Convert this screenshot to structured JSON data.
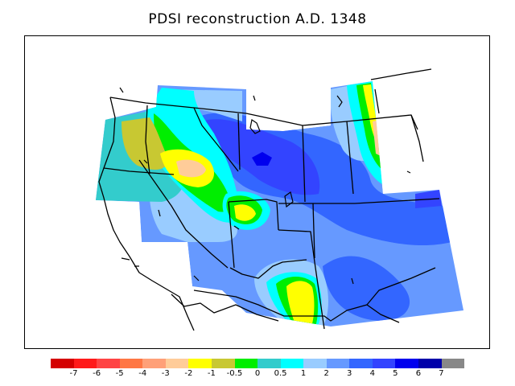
{
  "title": "PDSI reconstruction A.D. 1348",
  "legend": {
    "colors": [
      "#d40000",
      "#ff1a1a",
      "#ff4444",
      "#ff7744",
      "#ffa078",
      "#ffcc99",
      "#ffff00",
      "#c8c832",
      "#00ee00",
      "#33cccc",
      "#00ffff",
      "#99ccff",
      "#6699ff",
      "#3366ff",
      "#3344ff",
      "#0000ee",
      "#0000aa",
      "#888888"
    ],
    "tick_labels": [
      "-7",
      "-6",
      "-5",
      "-4",
      "-3",
      "-2",
      "-1",
      "-0.5",
      "0",
      "0.5",
      "1",
      "2",
      "3",
      "4",
      "5",
      "6",
      "7"
    ]
  },
  "map": {
    "type": "filled-contour",
    "variable": "PDSI",
    "year": "A.D. 1348",
    "levels": [
      -7,
      -6,
      -5,
      -4,
      -3,
      -2,
      -1,
      -0.5,
      0,
      0.5,
      1,
      2,
      3,
      4,
      5,
      6,
      7
    ],
    "region": "western North America",
    "colors": {
      "wet_strong": "#0000ee",
      "wet_mid": "#3344ff",
      "wet": "#3366ff",
      "moist": "#6699ff",
      "slightly_moist": "#99ccff",
      "near_normal_wet": "#00ffff",
      "near_normal": "#33cccc",
      "normal": "#00ee00",
      "slightly_dry": "#c8c832",
      "dry": "#ffff00",
      "drier": "#ffcc99"
    }
  }
}
